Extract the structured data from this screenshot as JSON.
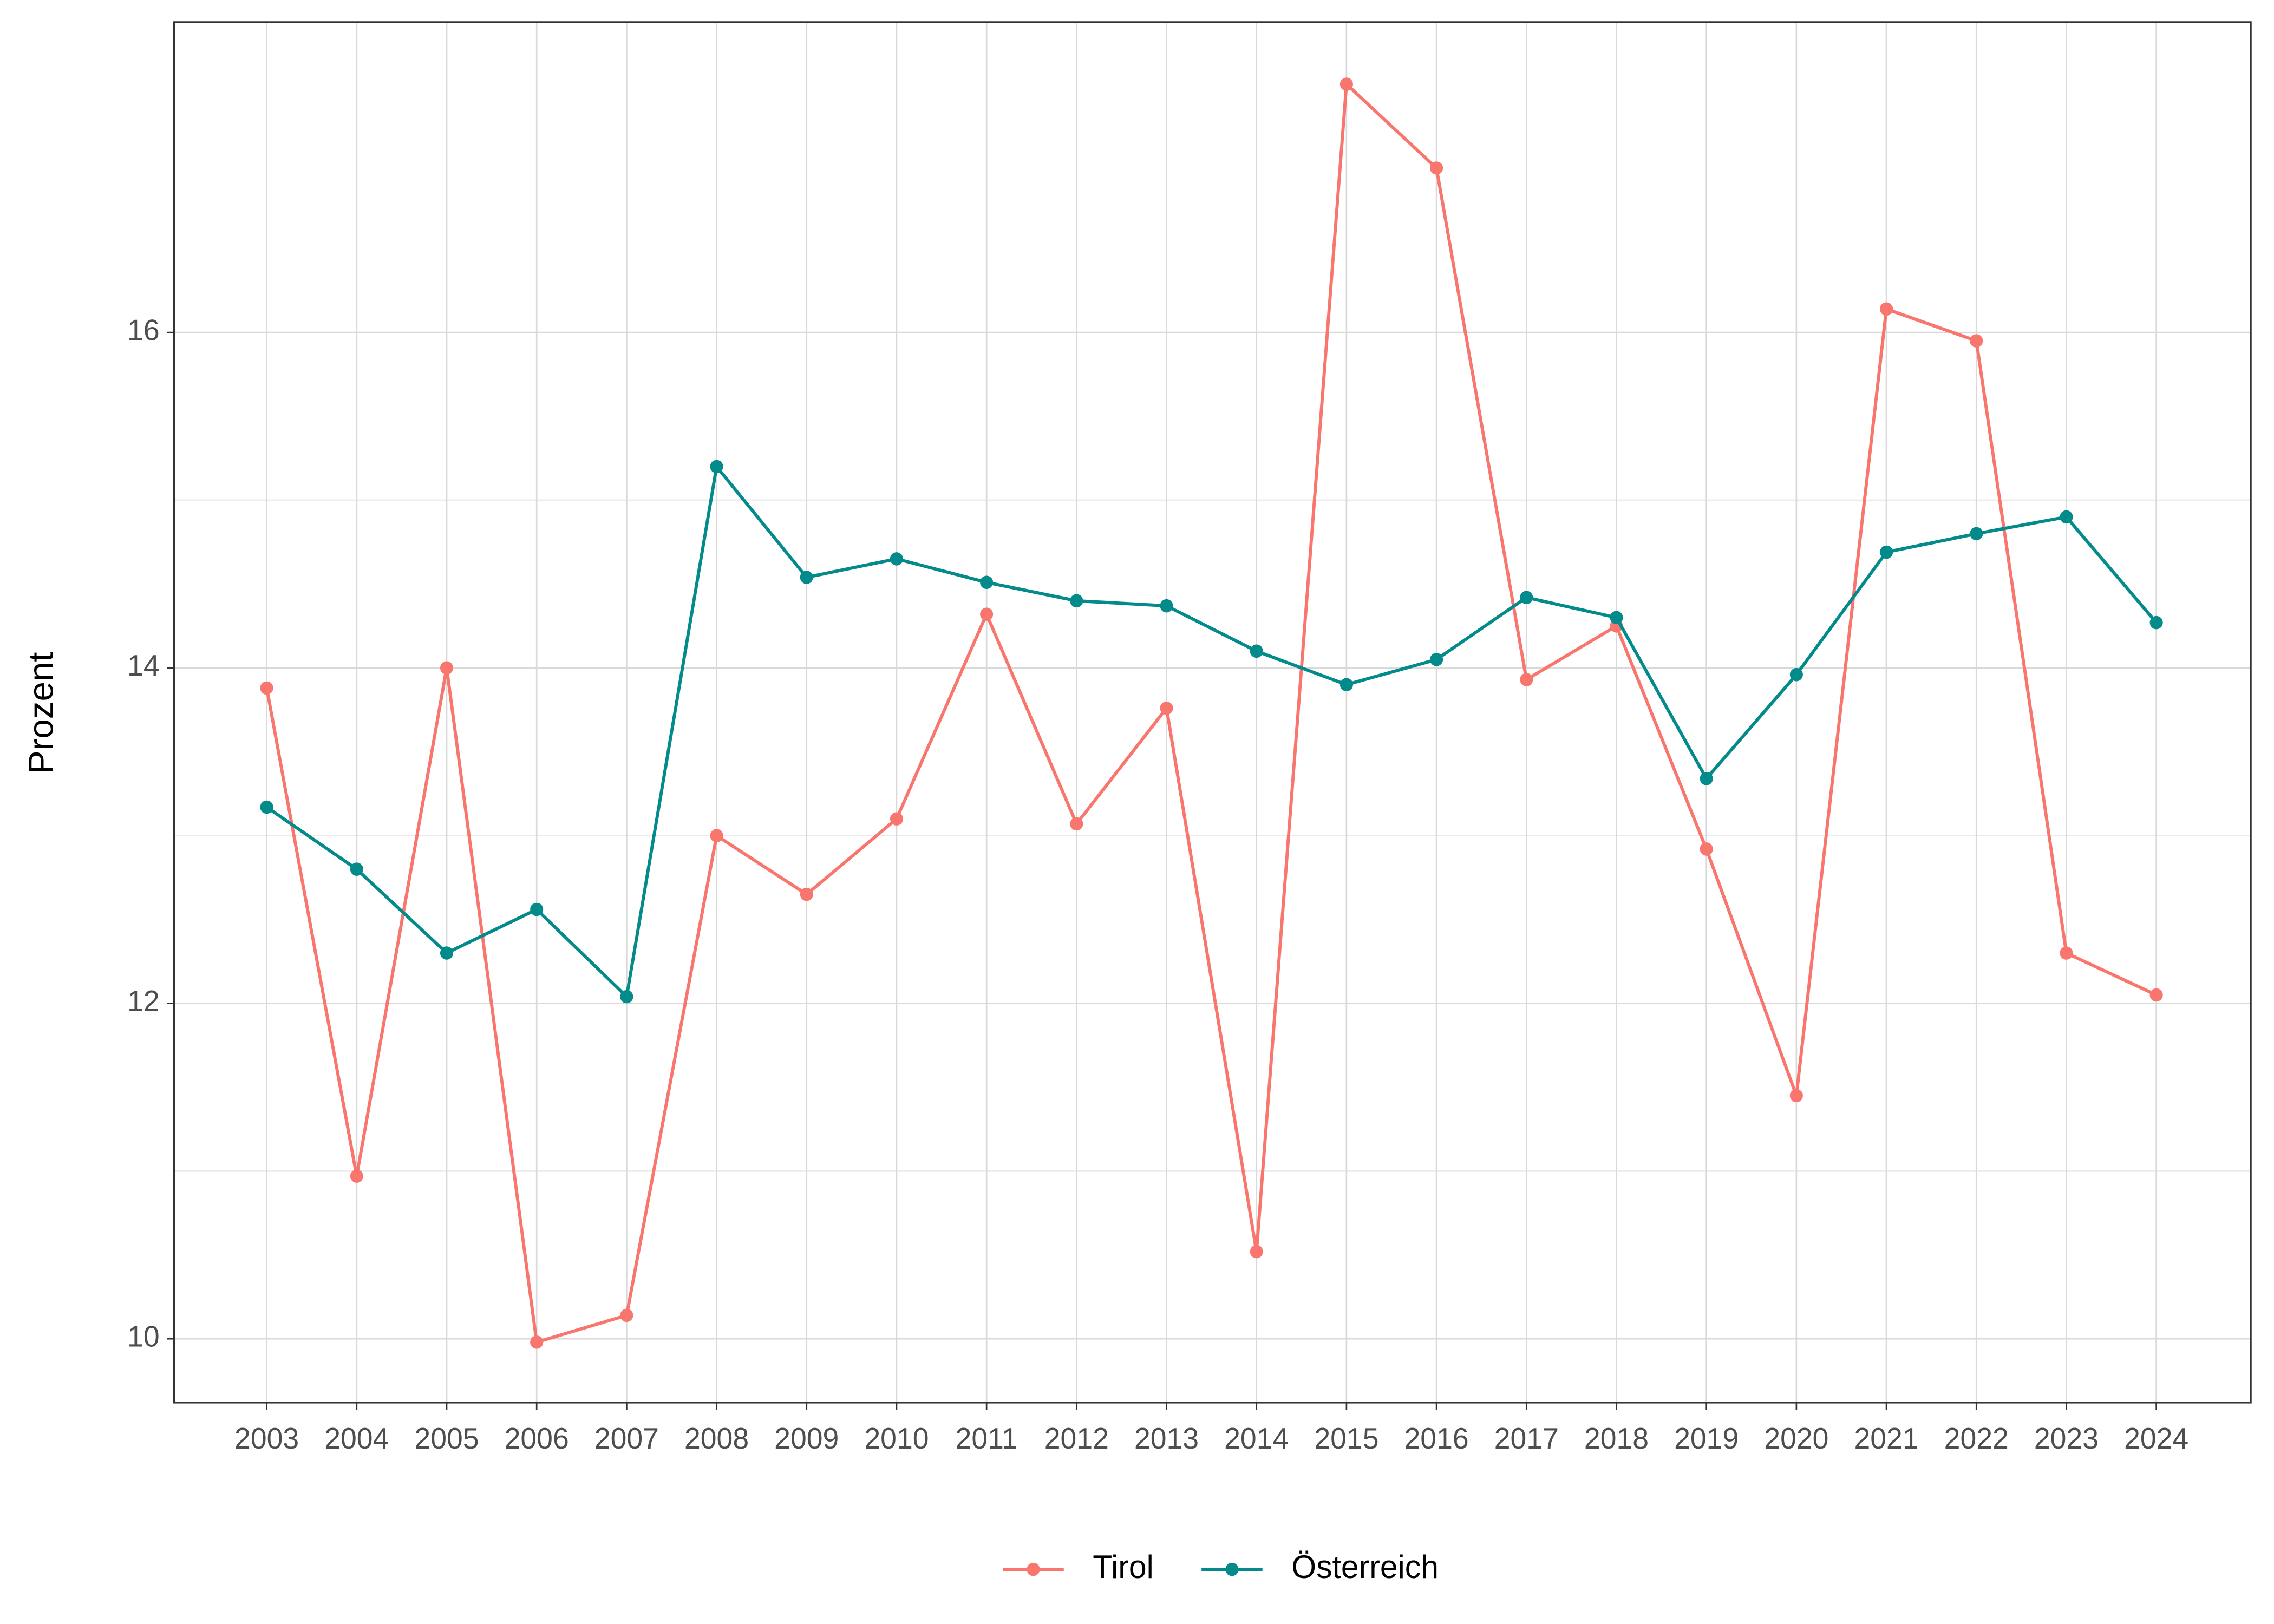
{
  "chart_data": {
    "type": "line",
    "y_label": "Prozent",
    "x": [
      2003,
      2004,
      2005,
      2006,
      2007,
      2008,
      2009,
      2010,
      2011,
      2012,
      2013,
      2014,
      2015,
      2016,
      2017,
      2018,
      2019,
      2020,
      2021,
      2022,
      2023,
      2024
    ],
    "series": [
      {
        "name": "Tirol",
        "color": "#f8766d",
        "values": [
          13.88,
          10.97,
          14.0,
          9.98,
          10.14,
          13.0,
          12.65,
          13.1,
          14.32,
          13.07,
          13.76,
          10.52,
          17.48,
          16.98,
          13.93,
          14.25,
          12.92,
          11.45,
          16.14,
          15.95,
          12.3,
          12.05
        ]
      },
      {
        "name": "Österreich",
        "color": "#038a8a",
        "values": [
          13.17,
          12.8,
          12.3,
          12.56,
          12.04,
          15.2,
          14.54,
          14.65,
          14.51,
          14.4,
          14.37,
          14.1,
          13.9,
          14.05,
          14.42,
          14.3,
          13.34,
          13.96,
          14.69,
          14.8,
          14.9,
          14.27
        ]
      }
    ],
    "xlim": [
      2001.97,
      2025.05
    ],
    "xticks": [
      2003,
      2004,
      2005,
      2006,
      2007,
      2008,
      2009,
      2010,
      2011,
      2012,
      2013,
      2014,
      2015,
      2016,
      2017,
      2018,
      2019,
      2020,
      2021,
      2022,
      2023,
      2024
    ],
    "ylim": [
      9.62,
      17.85
    ],
    "yticks": [
      10,
      12,
      14,
      16
    ],
    "grid": true,
    "legend": "bottom"
  }
}
